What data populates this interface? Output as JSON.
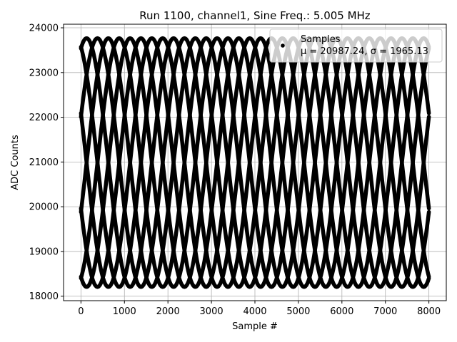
{
  "chart_data": {
    "type": "scatter",
    "title": "Run 1100, channel1, Sine Freq.: 5.005 MHz",
    "xlabel": "Sample #",
    "ylabel": "ADC Counts",
    "xlim": [
      -400,
      8400
    ],
    "ylim": [
      17900,
      24080
    ],
    "xticks": [
      0,
      1000,
      2000,
      3000,
      4000,
      5000,
      6000,
      7000,
      8000
    ],
    "yticks": [
      18000,
      19000,
      20000,
      21000,
      22000,
      23000,
      24000
    ],
    "grid": true,
    "legend": {
      "placement": "top-right",
      "entries": [
        {
          "label": "Samples",
          "stats": "μ = 20987.24, σ = 1965.13",
          "color": "#000000"
        }
      ]
    },
    "series": [
      {
        "name": "Samples",
        "color": "#000000",
        "model": {
          "mean": 20987.24,
          "amplitude": 2780,
          "traces": 8,
          "x_period": 2000,
          "x_peak": 380,
          "x_range": [
            0,
            8000
          ]
        }
      }
    ]
  }
}
